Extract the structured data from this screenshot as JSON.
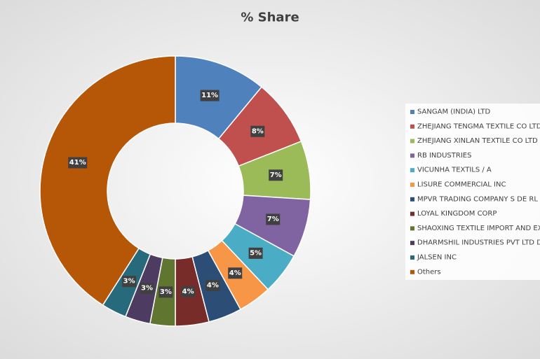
{
  "chart_data": {
    "type": "donut",
    "title": "% Share",
    "categories": [
      "SANGAM (INDIA) LTD",
      "ZHEJIANG TENGMA TEXTILE CO LTD",
      "ZHEJIANG XINLAN TEXTILE CO LTD",
      "RB INDUSTRIES",
      "VICUNHA TEXTILS / A",
      "LISURE COMMERCIAL INC",
      "MPVR TRADING COMPANY S DE RL",
      "LOYAL KINGDOM CORP",
      "SHAOXING TEXTILE IMPORT AND EXPO",
      "DHARMSHIL INDUSTRIES PVT LTD DHA",
      "JALSEN INC",
      "Others"
    ],
    "values": [
      11,
      8,
      7,
      7,
      5,
      4,
      4,
      4,
      3,
      3,
      3,
      41
    ],
    "value_labels": [
      "11%",
      "8%",
      "7%",
      "7%",
      "5%",
      "4%",
      "4%",
      "4%",
      "3%",
      "3%",
      "3%",
      "41%"
    ],
    "colors": [
      "#4f81bd",
      "#c0504d",
      "#9bbb59",
      "#8064a2",
      "#4bacc6",
      "#f79646",
      "#2c4d75",
      "#772c2a",
      "#5f7530",
      "#4d3b62",
      "#276a7c",
      "#b65708"
    ],
    "legend": "right"
  }
}
